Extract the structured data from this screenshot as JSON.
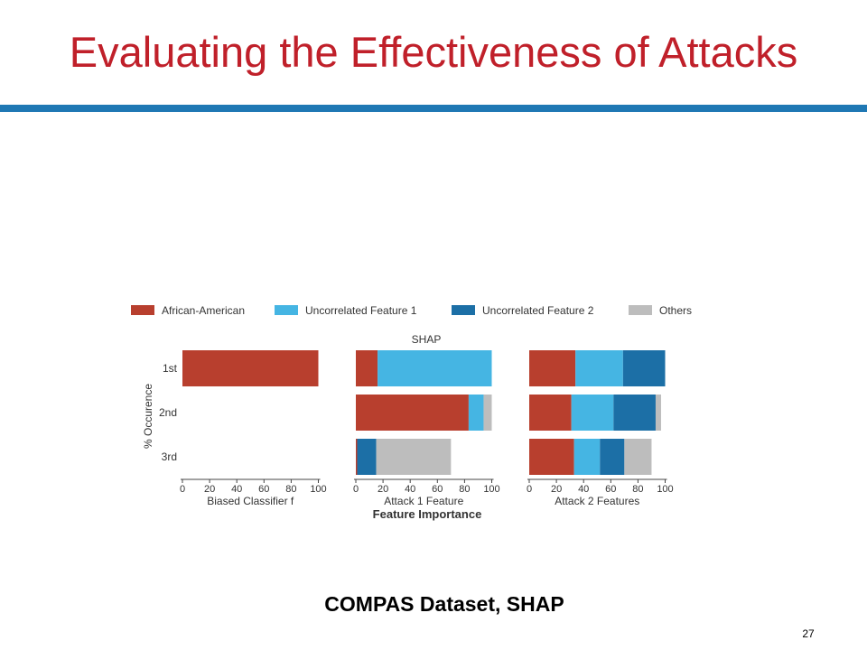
{
  "slide": {
    "title": "Evaluating the Effectiveness of Attacks",
    "caption": "COMPAS Dataset, SHAP",
    "page_number": "27",
    "title_color": "#c0202a",
    "rule_color": "#1f78b4"
  },
  "chart_data": {
    "type": "bar",
    "orientation": "horizontal",
    "stacked": true,
    "suptitle": "SHAP",
    "xlabel": "Feature Importance",
    "ylabel": "% Occurence",
    "categories": [
      "1st",
      "2nd",
      "3rd"
    ],
    "xlim": [
      0,
      100
    ],
    "xticks": [
      "0",
      "20",
      "40",
      "60",
      "80",
      "100"
    ],
    "grid": false,
    "legend_position": "top",
    "legend": [
      {
        "name": "African-American",
        "color": "#b83f2e"
      },
      {
        "name": "Uncorrelated Feature 1",
        "color": "#45b5e3"
      },
      {
        "name": "Uncorrelated Feature 2",
        "color": "#1c6fa6"
      },
      {
        "name": "Others",
        "color": "#bdbdbd"
      }
    ],
    "panels": [
      {
        "name": "biased-classifier",
        "xlabel": "Biased Classifier f",
        "series": [
          {
            "name": "African-American",
            "values": [
              100,
              0,
              0
            ]
          },
          {
            "name": "Uncorrelated Feature 1",
            "values": [
              0,
              0,
              0
            ]
          },
          {
            "name": "Uncorrelated Feature 2",
            "values": [
              0,
              0,
              0
            ]
          },
          {
            "name": "Others",
            "values": [
              0,
              0,
              0
            ]
          }
        ]
      },
      {
        "name": "attack-1",
        "xlabel": "Attack 1 Feature",
        "series": [
          {
            "name": "African-American",
            "values": [
              16,
              83,
              1
            ]
          },
          {
            "name": "Uncorrelated Feature 1",
            "values": [
              84,
              11,
              0
            ]
          },
          {
            "name": "Uncorrelated Feature 2",
            "values": [
              0,
              0,
              14
            ]
          },
          {
            "name": "Others",
            "values": [
              0,
              6,
              55
            ]
          }
        ]
      },
      {
        "name": "attack-2",
        "xlabel": "Attack 2 Features",
        "series": [
          {
            "name": "African-American",
            "values": [
              34,
              31,
              33
            ]
          },
          {
            "name": "Uncorrelated Feature 1",
            "values": [
              35,
              31,
              19
            ]
          },
          {
            "name": "Uncorrelated Feature 2",
            "values": [
              31,
              31,
              18
            ]
          },
          {
            "name": "Others",
            "values": [
              0,
              4,
              20
            ]
          }
        ]
      }
    ]
  }
}
